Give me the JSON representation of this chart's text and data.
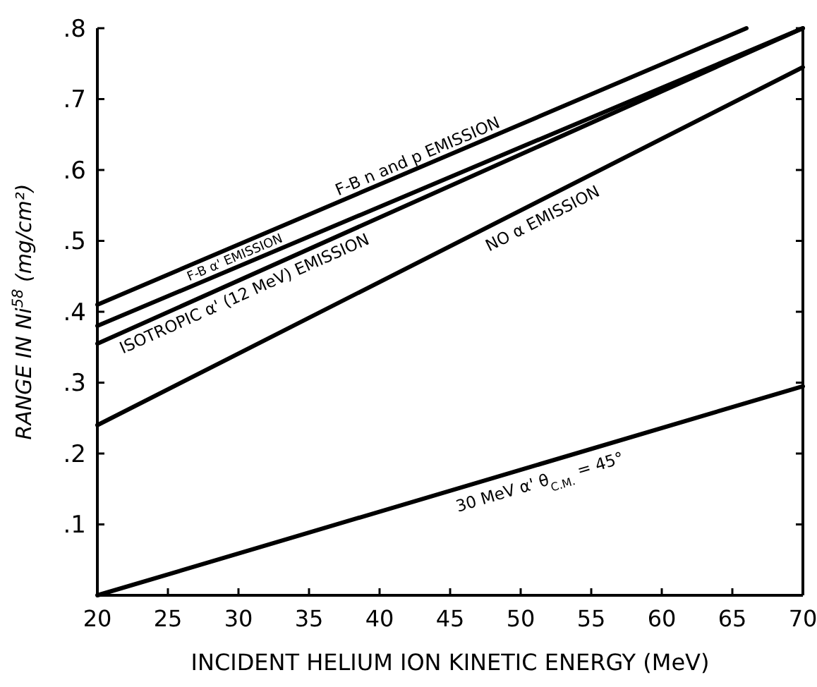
{
  "chart_data": {
    "type": "line",
    "xlabel": "INCIDENT HELIUM ION KINETIC ENERGY (MeV)",
    "ylabel": "RANGE IN Ni$^{58}$ (mg/cm²)",
    "xlim": [
      20,
      70
    ],
    "ylim": [
      0,
      0.8
    ],
    "xticks": [
      20,
      25,
      30,
      35,
      40,
      45,
      50,
      55,
      60,
      65,
      70
    ],
    "yticks": [
      {
        "value": 0.1,
        "label": ".1"
      },
      {
        "value": 0.2,
        "label": ".2"
      },
      {
        "value": 0.3,
        "label": ".3"
      },
      {
        "value": 0.4,
        "label": ".4"
      },
      {
        "value": 0.5,
        "label": ".5"
      },
      {
        "value": 0.6,
        "label": ".6"
      },
      {
        "value": 0.7,
        "label": ".7"
      },
      {
        "value": 0.8,
        "label": ".8"
      }
    ],
    "series": [
      {
        "name": "F-B n and p EMISSION",
        "color": "#000000",
        "x": [
          20,
          66
        ],
        "values": [
          0.41,
          0.8
        ]
      },
      {
        "name": "F-B α' EMISSION",
        "color": "#000000",
        "x": [
          20,
          70
        ],
        "values": [
          0.38,
          0.8
        ]
      },
      {
        "name": "ISOTROPIC α' (12 MeV) EMISSION",
        "color": "#000000",
        "x": [
          20,
          70
        ],
        "values": [
          0.355,
          0.8
        ]
      },
      {
        "name": "NO α EMISSION",
        "color": "#000000",
        "x": [
          20,
          70
        ],
        "values": [
          0.24,
          0.745
        ]
      },
      {
        "name": "30 MeV α' θ$_{C.M.}$ = 45°",
        "color": "#000000",
        "x": [
          20,
          70
        ],
        "values": [
          0,
          0.295
        ]
      }
    ]
  }
}
